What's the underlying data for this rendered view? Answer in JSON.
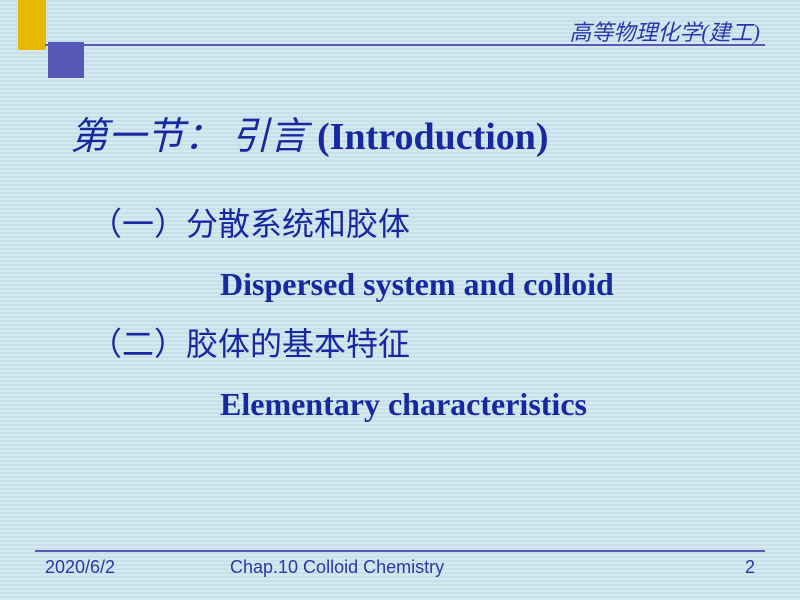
{
  "header": {
    "course_name": "高等物理化学(建工)"
  },
  "title": {
    "section_number": "第一节：",
    "section_cn": "引言",
    "section_en": "(Introduction)"
  },
  "content": {
    "item1": {
      "number": "（一）",
      "title_cn": "分散系统和胶体",
      "title_en": "Dispersed system and colloid"
    },
    "item2": {
      "number": "（二）",
      "title_cn": "胶体的基本特征",
      "title_en": "Elementary characteristics"
    }
  },
  "footer": {
    "date": "2020/6/2",
    "chapter": "Chap.10  Colloid Chemistry",
    "page": "2"
  },
  "colors": {
    "primary_text": "#1828a0",
    "accent_yellow": "#e8b800",
    "accent_blue": "#5858b8",
    "bg_light": "#d4e8f0",
    "bg_stripe": "#c8e0ea"
  }
}
